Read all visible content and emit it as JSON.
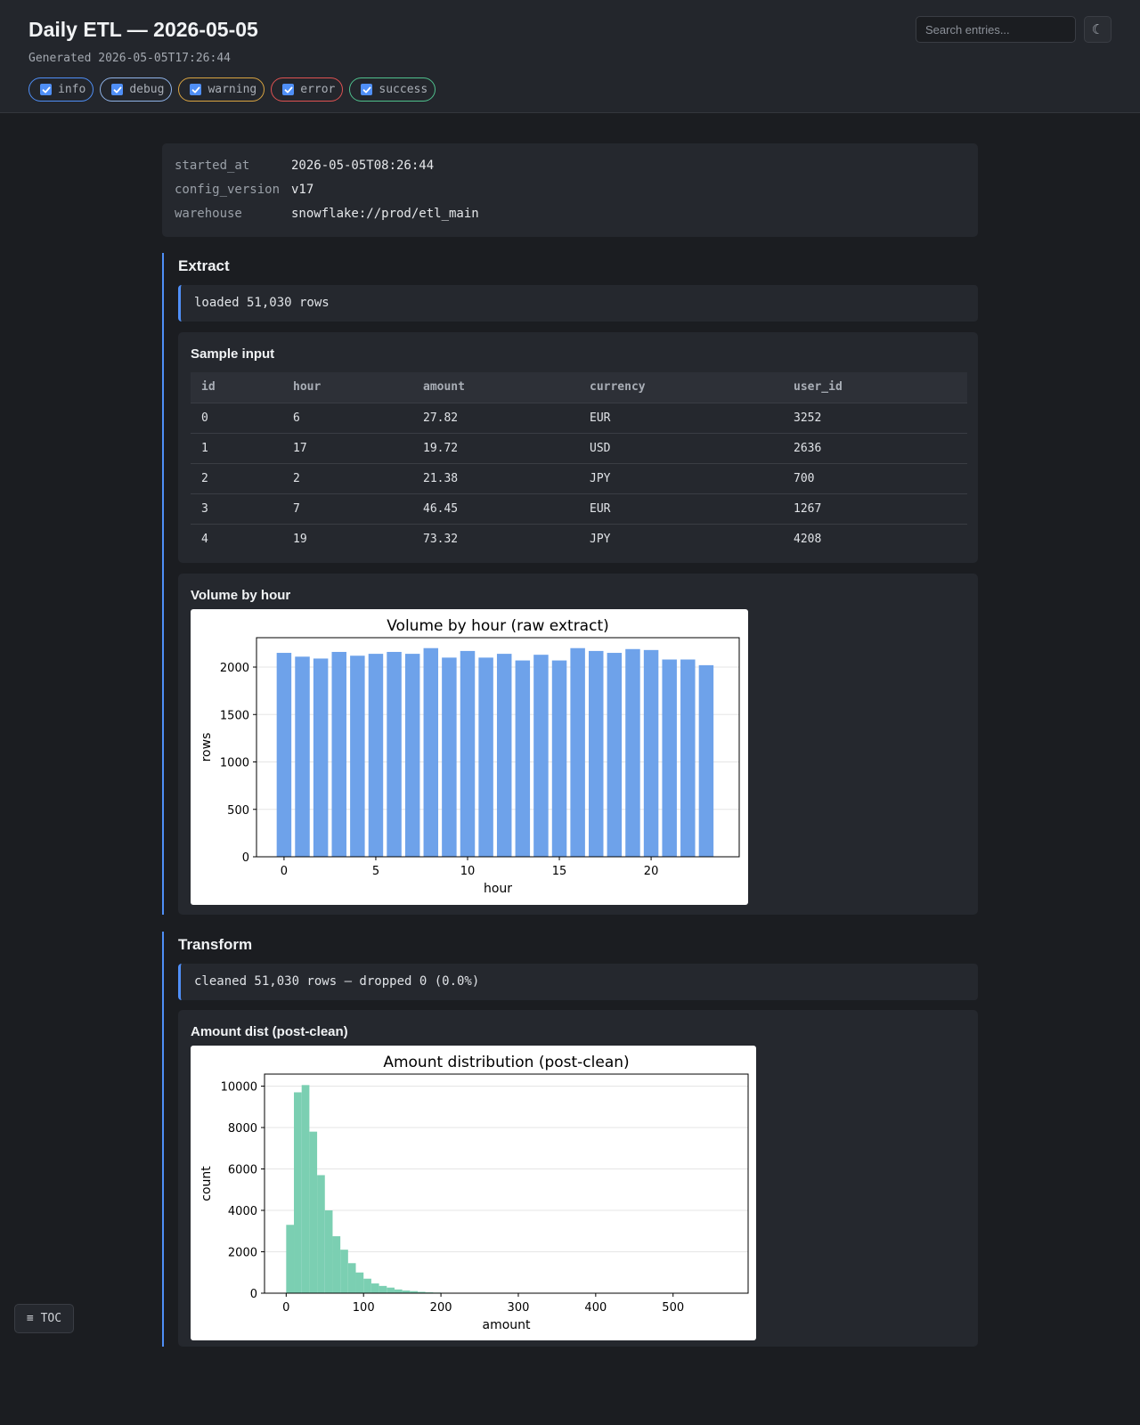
{
  "header": {
    "title": "Daily ETL — 2026-05-05",
    "generated": "Generated 2026-05-05T17:26:44",
    "search_placeholder": "Search entries...",
    "theme_icon": "☾",
    "filters": [
      {
        "label": "info",
        "color": "#4f8ff7",
        "checked": true
      },
      {
        "label": "debug",
        "color": "#8fb3e8",
        "checked": true
      },
      {
        "label": "warning",
        "color": "#d9a441",
        "checked": true
      },
      {
        "label": "error",
        "color": "#e05252",
        "checked": true
      },
      {
        "label": "success",
        "color": "#4fc08d",
        "checked": true
      }
    ]
  },
  "meta": [
    {
      "key": "started_at",
      "value": "2026-05-05T08:26:44"
    },
    {
      "key": "config_version",
      "value": "v17"
    },
    {
      "key": "warehouse",
      "value": "snowflake://prod/etl_main"
    }
  ],
  "extract": {
    "title": "Extract",
    "log": "loaded 51,030 rows",
    "table": {
      "title": "Sample input",
      "columns": [
        "id",
        "hour",
        "amount",
        "currency",
        "user_id"
      ],
      "rows": [
        [
          "0",
          "6",
          "27.82",
          "EUR",
          "3252"
        ],
        [
          "1",
          "17",
          "19.72",
          "USD",
          "2636"
        ],
        [
          "2",
          "2",
          "21.38",
          "JPY",
          "700"
        ],
        [
          "3",
          "7",
          "46.45",
          "EUR",
          "1267"
        ],
        [
          "4",
          "19",
          "73.32",
          "JPY",
          "4208"
        ]
      ]
    },
    "chart_card_title": "Volume by hour"
  },
  "transform": {
    "title": "Transform",
    "log": "cleaned 51,030 rows — dropped 0 (0.0%)",
    "chart_card_title": "Amount dist (post-clean)"
  },
  "toc_label": "≡ TOC",
  "chart_data": [
    {
      "type": "bar",
      "title": "Volume by hour (raw extract)",
      "xlabel": "hour",
      "ylabel": "rows",
      "color": "#6ea2ea",
      "x": [
        0,
        1,
        2,
        3,
        4,
        5,
        6,
        7,
        8,
        9,
        10,
        11,
        12,
        13,
        14,
        15,
        16,
        17,
        18,
        19,
        20,
        21,
        22,
        23
      ],
      "values": [
        2150,
        2110,
        2090,
        2160,
        2120,
        2140,
        2160,
        2140,
        2200,
        2100,
        2170,
        2100,
        2140,
        2070,
        2130,
        2070,
        2200,
        2170,
        2150,
        2190,
        2180,
        2080,
        2080,
        2020
      ],
      "xticks": [
        0,
        5,
        10,
        15,
        20
      ],
      "yticks": [
        0,
        500,
        1000,
        1500,
        2000
      ],
      "xlim": [
        -1.5,
        24.8
      ],
      "ylim": [
        0,
        2310
      ],
      "grid": true
    },
    {
      "type": "bar",
      "title": "Amount distribution (post-clean)",
      "xlabel": "amount",
      "ylabel": "count",
      "color": "#7bcfb2",
      "bin_width": 10,
      "bin_start": 0,
      "values": [
        3300,
        9700,
        10050,
        7800,
        5700,
        4000,
        2750,
        2100,
        1450,
        1000,
        700,
        470,
        350,
        270,
        180,
        130,
        100,
        65,
        40,
        30,
        22,
        18,
        14,
        11,
        9,
        7,
        6,
        5,
        4,
        3
      ],
      "xticks": [
        0,
        100,
        200,
        300,
        400,
        500
      ],
      "yticks": [
        0,
        2000,
        4000,
        6000,
        8000,
        10000
      ],
      "xlim": [
        -28,
        597
      ],
      "ylim": [
        0,
        10580
      ],
      "grid": true
    }
  ]
}
